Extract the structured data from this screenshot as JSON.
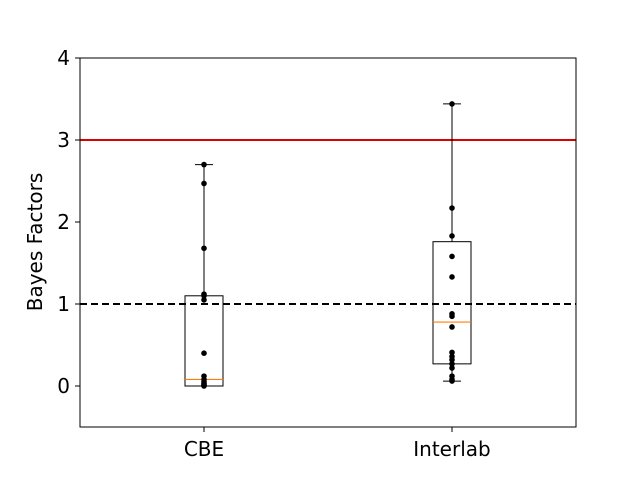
{
  "chart_data": {
    "type": "box",
    "xlabel": "",
    "ylabel": "Bayes Factors",
    "ylim": [
      -0.5,
      4.0
    ],
    "yticks": [
      0,
      1,
      2,
      3,
      4
    ],
    "categories": [
      "CBE",
      "Interlab"
    ],
    "boxes": [
      {
        "category": "CBE",
        "whisker_low": 0.0,
        "q1": 0.0,
        "median": 0.08,
        "q3": 1.1,
        "whisker_high": 2.7,
        "points": [
          0.0,
          0.01,
          0.02,
          0.03,
          0.05,
          0.08,
          0.12,
          0.4,
          1.05,
          1.1,
          1.12,
          1.68,
          2.47,
          2.7
        ]
      },
      {
        "category": "Interlab",
        "whisker_low": 0.06,
        "q1": 0.27,
        "median": 0.78,
        "q3": 1.76,
        "whisker_high": 3.44,
        "points": [
          0.06,
          0.08,
          0.12,
          0.22,
          0.27,
          0.32,
          0.36,
          0.41,
          0.72,
          0.85,
          0.88,
          1.33,
          1.58,
          1.83,
          2.17,
          3.44
        ]
      }
    ],
    "reference_lines": [
      {
        "y": 3.0,
        "color": "#dd0000",
        "style": "solid"
      },
      {
        "y": 1.0,
        "color": "#000000",
        "style": "dashed"
      }
    ],
    "colors": {
      "median": "#ff7f0e",
      "box": "#000000",
      "points": "#000000"
    },
    "grid": false,
    "legend": "none"
  }
}
